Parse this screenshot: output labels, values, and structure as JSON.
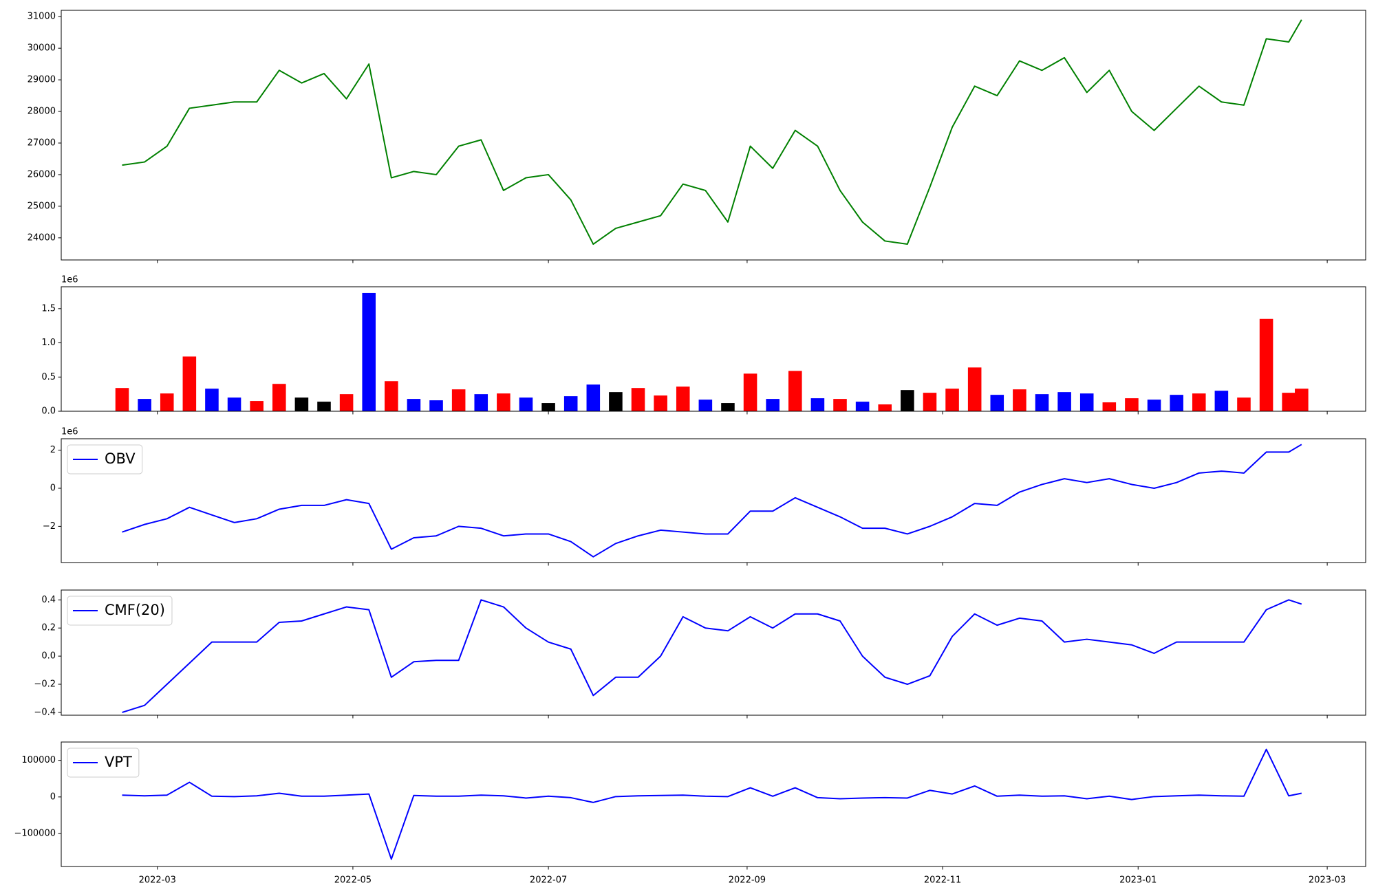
{
  "chart_data": [
    {
      "type": "line",
      "color": "green",
      "x": [
        "2022-02-18",
        "2022-02-25",
        "2022-03-04",
        "2022-03-11",
        "2022-03-18",
        "2022-03-25",
        "2022-04-01",
        "2022-04-08",
        "2022-04-15",
        "2022-04-22",
        "2022-04-29",
        "2022-05-06",
        "2022-05-13",
        "2022-05-20",
        "2022-05-27",
        "2022-06-03",
        "2022-06-10",
        "2022-06-17",
        "2022-06-24",
        "2022-07-01",
        "2022-07-08",
        "2022-07-15",
        "2022-07-22",
        "2022-07-29",
        "2022-08-05",
        "2022-08-12",
        "2022-08-19",
        "2022-08-26",
        "2022-09-02",
        "2022-09-09",
        "2022-09-16",
        "2022-09-23",
        "2022-09-30",
        "2022-10-07",
        "2022-10-14",
        "2022-10-21",
        "2022-10-28",
        "2022-11-04",
        "2022-11-11",
        "2022-11-18",
        "2022-11-25",
        "2022-12-02",
        "2022-12-09",
        "2022-12-16",
        "2022-12-23",
        "2022-12-30",
        "2023-01-06",
        "2023-01-13",
        "2023-01-20",
        "2023-01-27",
        "2023-02-03",
        "2023-02-10",
        "2023-02-17",
        "2023-02-21"
      ],
      "values": [
        26300,
        26400,
        26900,
        28100,
        28200,
        28300,
        28300,
        29300,
        28900,
        29200,
        28400,
        29500,
        25900,
        26100,
        26000,
        26900,
        27100,
        25500,
        25900,
        26000,
        25200,
        23800,
        24300,
        24500,
        24700,
        25700,
        25500,
        24500,
        26900,
        26200,
        27400,
        26900,
        25500,
        24500,
        23900,
        23800,
        25600,
        27500,
        28800,
        28500,
        29600,
        29300,
        29700,
        28600,
        29300,
        28000,
        27400,
        28100,
        28800,
        28300,
        28200,
        30300,
        30200,
        30900
      ],
      "xlim": [
        "2022-01-30",
        "2023-03-13"
      ],
      "ylim": [
        23300,
        31200
      ],
      "yticks": [
        24000,
        25000,
        26000,
        27000,
        28000,
        29000,
        30000,
        31000
      ]
    },
    {
      "type": "bar",
      "y_offset_text": "1e6",
      "x": [
        "2022-02-18",
        "2022-02-25",
        "2022-03-04",
        "2022-03-11",
        "2022-03-18",
        "2022-03-25",
        "2022-04-01",
        "2022-04-08",
        "2022-04-15",
        "2022-04-22",
        "2022-04-29",
        "2022-05-06",
        "2022-05-13",
        "2022-05-20",
        "2022-05-27",
        "2022-06-03",
        "2022-06-10",
        "2022-06-17",
        "2022-06-24",
        "2022-07-01",
        "2022-07-08",
        "2022-07-15",
        "2022-07-22",
        "2022-07-29",
        "2022-08-05",
        "2022-08-12",
        "2022-08-19",
        "2022-08-26",
        "2022-09-02",
        "2022-09-09",
        "2022-09-16",
        "2022-09-23",
        "2022-09-30",
        "2022-10-07",
        "2022-10-14",
        "2022-10-21",
        "2022-10-28",
        "2022-11-04",
        "2022-11-11",
        "2022-11-18",
        "2022-11-25",
        "2022-12-02",
        "2022-12-09",
        "2022-12-16",
        "2022-12-23",
        "2022-12-30",
        "2023-01-06",
        "2023-01-13",
        "2023-01-20",
        "2023-01-27",
        "2023-02-03",
        "2023-02-10",
        "2023-02-17",
        "2023-02-21"
      ],
      "values": [
        340000,
        180000,
        260000,
        800000,
        330000,
        200000,
        150000,
        400000,
        200000,
        140000,
        250000,
        1730000,
        440000,
        180000,
        160000,
        320000,
        250000,
        260000,
        200000,
        120000,
        220000,
        390000,
        280000,
        340000,
        230000,
        360000,
        170000,
        120000,
        550000,
        180000,
        590000,
        190000,
        180000,
        140000,
        100000,
        310000,
        270000,
        330000,
        640000,
        240000,
        320000,
        250000,
        280000,
        260000,
        130000,
        190000,
        170000,
        240000,
        260000,
        300000,
        200000,
        1350000,
        270000,
        330000
      ],
      "colors": [
        "red",
        "blue",
        "red",
        "red",
        "blue",
        "blue",
        "red",
        "red",
        "black",
        "black",
        "red",
        "blue",
        "red",
        "blue",
        "blue",
        "red",
        "blue",
        "red",
        "blue",
        "black",
        "blue",
        "blue",
        "black",
        "red",
        "red",
        "red",
        "blue",
        "black",
        "red",
        "blue",
        "red",
        "blue",
        "red",
        "blue",
        "red",
        "black",
        "red",
        "red",
        "red",
        "blue",
        "red",
        "blue",
        "blue",
        "blue",
        "red",
        "red",
        "blue",
        "blue",
        "red",
        "blue",
        "red",
        "red",
        "red",
        "red"
      ],
      "xlim": [
        "2022-01-30",
        "2023-03-13"
      ],
      "ylim": [
        0,
        1820000
      ],
      "yticks": [
        {
          "value": 0,
          "label": "0.0"
        },
        {
          "value": 500000,
          "label": "0.5"
        },
        {
          "value": 1000000,
          "label": "1.0"
        },
        {
          "value": 1500000,
          "label": "1.5"
        }
      ]
    },
    {
      "type": "line",
      "y_offset_text": "1e6",
      "legend": "upper left",
      "x": [
        "2022-02-18",
        "2022-02-25",
        "2022-03-04",
        "2022-03-11",
        "2022-03-18",
        "2022-03-25",
        "2022-04-01",
        "2022-04-08",
        "2022-04-15",
        "2022-04-22",
        "2022-04-29",
        "2022-05-06",
        "2022-05-13",
        "2022-05-20",
        "2022-05-27",
        "2022-06-03",
        "2022-06-10",
        "2022-06-17",
        "2022-06-24",
        "2022-07-01",
        "2022-07-08",
        "2022-07-15",
        "2022-07-22",
        "2022-07-29",
        "2022-08-05",
        "2022-08-12",
        "2022-08-19",
        "2022-08-26",
        "2022-09-02",
        "2022-09-09",
        "2022-09-16",
        "2022-09-23",
        "2022-09-30",
        "2022-10-07",
        "2022-10-14",
        "2022-10-21",
        "2022-10-28",
        "2022-11-04",
        "2022-11-11",
        "2022-11-18",
        "2022-11-25",
        "2022-12-02",
        "2022-12-09",
        "2022-12-16",
        "2022-12-23",
        "2022-12-30",
        "2023-01-06",
        "2023-01-13",
        "2023-01-20",
        "2023-01-27",
        "2023-02-03",
        "2023-02-10",
        "2023-02-17",
        "2023-02-21"
      ],
      "series": [
        {
          "name": "OBV",
          "color": "blue",
          "values": [
            -2300000,
            -1900000,
            -1600000,
            -1000000,
            -1400000,
            -1800000,
            -1600000,
            -1100000,
            -900000,
            -900000,
            -600000,
            -800000,
            -3200000,
            -2600000,
            -2500000,
            -2000000,
            -2100000,
            -2500000,
            -2400000,
            -2400000,
            -2800000,
            -3600000,
            -2900000,
            -2500000,
            -2200000,
            -2300000,
            -2400000,
            -2400000,
            -1200000,
            -1200000,
            -500000,
            -1000000,
            -1500000,
            -2100000,
            -2100000,
            -2400000,
            -2000000,
            -1500000,
            -800000,
            -900000,
            -200000,
            200000,
            500000,
            300000,
            500000,
            200000,
            0,
            300000,
            800000,
            900000,
            800000,
            1900000,
            1900000,
            2300000
          ]
        }
      ],
      "xlim": [
        "2022-01-30",
        "2023-03-13"
      ],
      "ylim": [
        -3900000,
        2600000
      ],
      "yticks": [
        {
          "value": -2000000,
          "label": "−2"
        },
        {
          "value": 0,
          "label": "0"
        },
        {
          "value": 2000000,
          "label": "2"
        }
      ]
    },
    {
      "type": "line",
      "legend": "upper left",
      "x": [
        "2022-02-18",
        "2022-02-25",
        "2022-03-04",
        "2022-03-11",
        "2022-03-18",
        "2022-03-25",
        "2022-04-01",
        "2022-04-08",
        "2022-04-15",
        "2022-04-22",
        "2022-04-29",
        "2022-05-06",
        "2022-05-13",
        "2022-05-20",
        "2022-05-27",
        "2022-06-03",
        "2022-06-10",
        "2022-06-17",
        "2022-06-24",
        "2022-07-01",
        "2022-07-08",
        "2022-07-15",
        "2022-07-22",
        "2022-07-29",
        "2022-08-05",
        "2022-08-12",
        "2022-08-19",
        "2022-08-26",
        "2022-09-02",
        "2022-09-09",
        "2022-09-16",
        "2022-09-23",
        "2022-09-30",
        "2022-10-07",
        "2022-10-14",
        "2022-10-21",
        "2022-10-28",
        "2022-11-04",
        "2022-11-11",
        "2022-11-18",
        "2022-11-25",
        "2022-12-02",
        "2022-12-09",
        "2022-12-16",
        "2022-12-23",
        "2022-12-30",
        "2023-01-06",
        "2023-01-13",
        "2023-01-20",
        "2023-01-27",
        "2023-02-03",
        "2023-02-10",
        "2023-02-17",
        "2023-02-21"
      ],
      "series": [
        {
          "name": "CMF(20)",
          "color": "blue",
          "values": [
            -0.4,
            -0.35,
            -0.2,
            -0.05,
            0.1,
            0.1,
            0.1,
            0.24,
            0.25,
            0.3,
            0.35,
            0.33,
            -0.15,
            -0.04,
            -0.03,
            -0.03,
            0.4,
            0.35,
            0.2,
            0.1,
            0.05,
            -0.28,
            -0.15,
            -0.15,
            0.0,
            0.28,
            0.2,
            0.18,
            0.28,
            0.2,
            0.3,
            0.3,
            0.25,
            0.0,
            -0.15,
            -0.2,
            -0.14,
            0.14,
            0.3,
            0.22,
            0.27,
            0.25,
            0.1,
            0.12,
            0.1,
            0.08,
            0.02,
            0.1,
            0.1,
            0.1,
            0.1,
            0.33,
            0.4,
            0.37
          ]
        }
      ],
      "xlim": [
        "2022-01-30",
        "2023-03-13"
      ],
      "ylim": [
        -0.42,
        0.47
      ],
      "yticks": [
        {
          "value": -0.4,
          "label": "−0.4"
        },
        {
          "value": -0.2,
          "label": "−0.2"
        },
        {
          "value": 0,
          "label": "0.0"
        },
        0.2,
        0.4
      ]
    },
    {
      "type": "line",
      "legend": "upper left",
      "x": [
        "2022-02-18",
        "2022-02-25",
        "2022-03-04",
        "2022-03-11",
        "2022-03-18",
        "2022-03-25",
        "2022-04-01",
        "2022-04-08",
        "2022-04-15",
        "2022-04-22",
        "2022-04-29",
        "2022-05-06",
        "2022-05-13",
        "2022-05-20",
        "2022-05-27",
        "2022-06-03",
        "2022-06-10",
        "2022-06-17",
        "2022-06-24",
        "2022-07-01",
        "2022-07-08",
        "2022-07-15",
        "2022-07-22",
        "2022-07-29",
        "2022-08-05",
        "2022-08-12",
        "2022-08-19",
        "2022-08-26",
        "2022-09-02",
        "2022-09-09",
        "2022-09-16",
        "2022-09-23",
        "2022-09-30",
        "2022-10-07",
        "2022-10-14",
        "2022-10-21",
        "2022-10-28",
        "2022-11-04",
        "2022-11-11",
        "2022-11-18",
        "2022-11-25",
        "2022-12-02",
        "2022-12-09",
        "2022-12-16",
        "2022-12-23",
        "2022-12-30",
        "2023-01-06",
        "2023-01-13",
        "2023-01-20",
        "2023-01-27",
        "2023-02-03",
        "2023-02-10",
        "2023-02-17",
        "2023-02-21"
      ],
      "series": [
        {
          "name": "VPT",
          "color": "blue",
          "values": [
            5000,
            3000,
            5000,
            40000,
            2000,
            1000,
            3000,
            10000,
            2000,
            2000,
            5000,
            8000,
            -170000,
            4000,
            2000,
            2000,
            5000,
            3000,
            -3000,
            2000,
            -2000,
            -15000,
            1000,
            3000,
            4000,
            5000,
            2000,
            1000,
            25000,
            2000,
            25000,
            -2000,
            -5000,
            -3000,
            -2000,
            -3000,
            18000,
            8000,
            30000,
            2000,
            5000,
            2000,
            3000,
            -5000,
            2000,
            -7000,
            1000,
            3000,
            5000,
            3000,
            2000,
            130000,
            3000,
            10000
          ]
        }
      ],
      "xlim": [
        "2022-01-30",
        "2023-03-13"
      ],
      "ylim": [
        -190000,
        150000
      ],
      "yticks": [
        {
          "value": -100000,
          "label": "−100000"
        },
        0,
        100000
      ],
      "xticks": [
        "2022-03",
        "2022-05",
        "2022-07",
        "2022-09",
        "2022-11",
        "2023-01",
        "2023-03"
      ]
    }
  ]
}
